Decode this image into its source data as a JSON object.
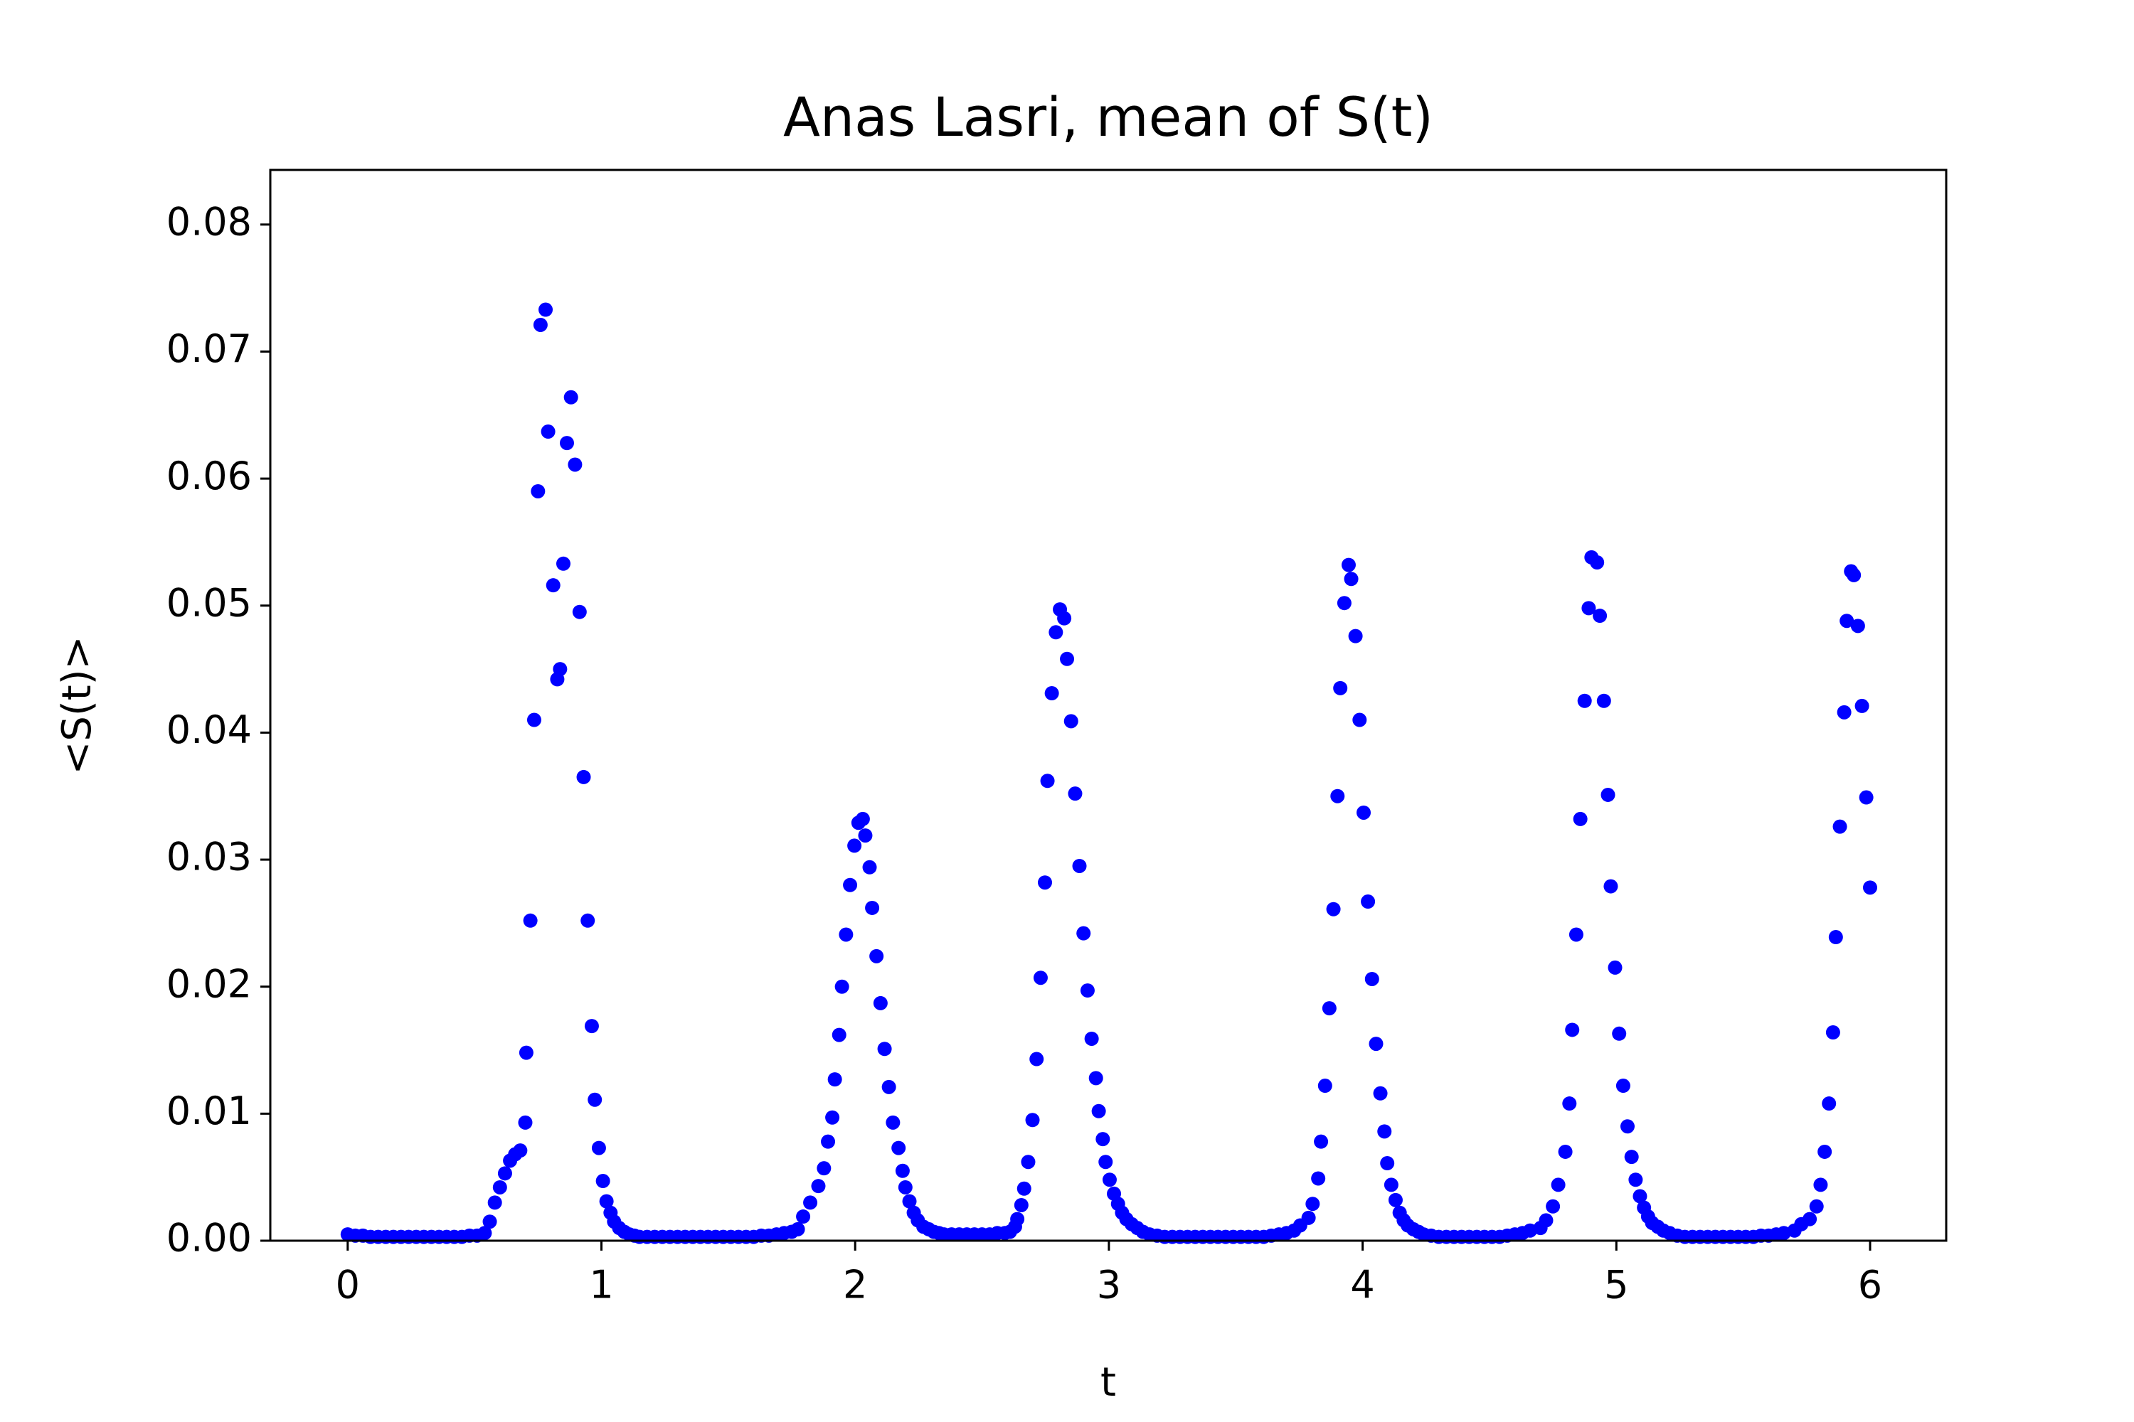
{
  "chart_data": {
    "type": "scatter",
    "title": "Anas Lasri, mean of S(t)",
    "xlabel": "t",
    "ylabel": "<S(t)>",
    "color": "#0000ff",
    "x": [
      0.0,
      0.03,
      0.06,
      0.09,
      0.12,
      0.15,
      0.18,
      0.21,
      0.24,
      0.27,
      0.3,
      0.33,
      0.36,
      0.39,
      0.42,
      0.45,
      0.48,
      0.51,
      0.54,
      0.56,
      0.58,
      0.6,
      0.62,
      0.64,
      0.66,
      0.68,
      0.7,
      0.704,
      0.72,
      0.735,
      0.75,
      0.76,
      0.78,
      0.79,
      0.81,
      0.826,
      0.837,
      0.85,
      0.864,
      0.88,
      0.896,
      0.914,
      0.93,
      0.946,
      0.962,
      0.974,
      0.99,
      1.006,
      1.02,
      1.036,
      1.05,
      1.07,
      1.09,
      1.11,
      1.13,
      1.15,
      1.18,
      1.21,
      1.24,
      1.27,
      1.3,
      1.33,
      1.36,
      1.39,
      1.42,
      1.45,
      1.48,
      1.51,
      1.54,
      1.57,
      1.6,
      1.63,
      1.66,
      1.69,
      1.72,
      1.75,
      1.774,
      1.795,
      1.823,
      1.855,
      1.877,
      1.893,
      1.91,
      1.92,
      1.937,
      1.948,
      1.964,
      1.98,
      1.997,
      2.013,
      2.03,
      2.04,
      2.057,
      2.067,
      2.084,
      2.1,
      2.116,
      2.133,
      2.149,
      2.171,
      2.187,
      2.198,
      2.214,
      2.231,
      2.247,
      2.269,
      2.29,
      2.31,
      2.33,
      2.35,
      2.38,
      2.41,
      2.44,
      2.47,
      2.5,
      2.53,
      2.56,
      2.59,
      2.61,
      2.63,
      2.639,
      2.655,
      2.666,
      2.682,
      2.699,
      2.715,
      2.731,
      2.748,
      2.758,
      2.775,
      2.791,
      2.807,
      2.824,
      2.835,
      2.851,
      2.867,
      2.884,
      2.9,
      2.916,
      2.932,
      2.949,
      2.96,
      2.976,
      2.987,
      3.003,
      3.02,
      3.036,
      3.052,
      3.069,
      3.09,
      3.112,
      3.134,
      3.16,
      3.19,
      3.22,
      3.25,
      3.28,
      3.31,
      3.34,
      3.37,
      3.4,
      3.43,
      3.46,
      3.49,
      3.52,
      3.55,
      3.58,
      3.61,
      3.64,
      3.67,
      3.7,
      3.73,
      3.754,
      3.787,
      3.803,
      3.825,
      3.836,
      3.852,
      3.869,
      3.885,
      3.901,
      3.912,
      3.928,
      3.945,
      3.955,
      3.972,
      3.988,
      4.004,
      4.021,
      4.037,
      4.053,
      4.07,
      4.086,
      4.097,
      4.113,
      4.13,
      4.146,
      4.162,
      4.178,
      4.2,
      4.22,
      4.24,
      4.27,
      4.3,
      4.33,
      4.36,
      4.39,
      4.42,
      4.45,
      4.48,
      4.51,
      4.54,
      4.57,
      4.6,
      4.63,
      4.66,
      4.701,
      4.723,
      4.75,
      4.771,
      4.799,
      4.815,
      4.826,
      4.842,
      4.858,
      4.875,
      4.891,
      4.902,
      4.924,
      4.935,
      4.951,
      4.967,
      4.978,
      4.995,
      5.011,
      5.027,
      5.044,
      5.06,
      5.076,
      5.093,
      5.109,
      5.125,
      5.141,
      5.163,
      5.185,
      5.21,
      5.24,
      5.27,
      5.3,
      5.33,
      5.36,
      5.39,
      5.42,
      5.45,
      5.48,
      5.51,
      5.54,
      5.57,
      5.6,
      5.63,
      5.66,
      5.702,
      5.729,
      5.762,
      5.789,
      5.805,
      5.821,
      5.838,
      5.854,
      5.865,
      5.881,
      5.898,
      5.908,
      5.925,
      5.936,
      5.952,
      5.968,
      5.985,
      6.0
    ],
    "values": [
      0.0005,
      0.0004,
      0.0004,
      0.0003,
      0.0003,
      0.0003,
      0.0003,
      0.0003,
      0.0003,
      0.0003,
      0.0003,
      0.0003,
      0.0003,
      0.0003,
      0.0003,
      0.0003,
      0.0004,
      0.0004,
      0.0006,
      0.0015,
      0.003,
      0.0042,
      0.0053,
      0.0063,
      0.0068,
      0.0071,
      0.0093,
      0.0148,
      0.0252,
      0.041,
      0.059,
      0.0721,
      0.0733,
      0.0637,
      0.0516,
      0.0442,
      0.045,
      0.0533,
      0.0628,
      0.0664,
      0.0611,
      0.0495,
      0.0365,
      0.0252,
      0.0169,
      0.0111,
      0.0073,
      0.0047,
      0.0031,
      0.0022,
      0.0015,
      0.001,
      0.0007,
      0.0005,
      0.0004,
      0.0003,
      0.0003,
      0.0003,
      0.0003,
      0.0003,
      0.0003,
      0.0003,
      0.0003,
      0.0003,
      0.0003,
      0.0003,
      0.0003,
      0.0003,
      0.0003,
      0.0003,
      0.0003,
      0.0004,
      0.0004,
      0.0005,
      0.0006,
      0.0007,
      0.0009,
      0.0019,
      0.003,
      0.0043,
      0.0057,
      0.0078,
      0.0097,
      0.0127,
      0.0162,
      0.02,
      0.0241,
      0.028,
      0.0311,
      0.0329,
      0.0332,
      0.0319,
      0.0294,
      0.0262,
      0.0224,
      0.0187,
      0.0151,
      0.0121,
      0.0093,
      0.0073,
      0.0055,
      0.0042,
      0.0031,
      0.0022,
      0.0016,
      0.0011,
      0.0009,
      0.0007,
      0.0006,
      0.0005,
      0.0005,
      0.0005,
      0.0005,
      0.0005,
      0.0005,
      0.0005,
      0.0006,
      0.0006,
      0.0007,
      0.0011,
      0.0017,
      0.0028,
      0.0041,
      0.0062,
      0.0095,
      0.0143,
      0.0207,
      0.0282,
      0.0362,
      0.0431,
      0.0479,
      0.0497,
      0.049,
      0.0458,
      0.0409,
      0.0352,
      0.0295,
      0.0242,
      0.0197,
      0.0159,
      0.0128,
      0.0102,
      0.008,
      0.0062,
      0.0048,
      0.0037,
      0.0029,
      0.0022,
      0.0017,
      0.0013,
      0.001,
      0.0007,
      0.0005,
      0.0004,
      0.0003,
      0.0003,
      0.0003,
      0.0003,
      0.0003,
      0.0003,
      0.0003,
      0.0003,
      0.0003,
      0.0003,
      0.0003,
      0.0003,
      0.0003,
      0.0003,
      0.0004,
      0.0005,
      0.0006,
      0.0008,
      0.0012,
      0.0018,
      0.0029,
      0.0049,
      0.0078,
      0.0122,
      0.0183,
      0.0261,
      0.035,
      0.0435,
      0.0502,
      0.0532,
      0.0521,
      0.0476,
      0.041,
      0.0337,
      0.0267,
      0.0206,
      0.0155,
      0.0116,
      0.0086,
      0.0061,
      0.0044,
      0.0032,
      0.0022,
      0.0016,
      0.0012,
      0.0009,
      0.0007,
      0.0005,
      0.0004,
      0.0003,
      0.0003,
      0.0003,
      0.0003,
      0.0003,
      0.0003,
      0.0003,
      0.0003,
      0.0003,
      0.0004,
      0.0005,
      0.0006,
      0.0008,
      0.001,
      0.0016,
      0.0027,
      0.0044,
      0.007,
      0.0108,
      0.0166,
      0.0241,
      0.0332,
      0.0425,
      0.0498,
      0.0538,
      0.0534,
      0.0492,
      0.0425,
      0.0351,
      0.0279,
      0.0215,
      0.0163,
      0.0122,
      0.009,
      0.0066,
      0.0048,
      0.0035,
      0.0026,
      0.0019,
      0.0014,
      0.0011,
      0.0008,
      0.0006,
      0.0004,
      0.0003,
      0.0003,
      0.0003,
      0.0003,
      0.0003,
      0.0003,
      0.0003,
      0.0003,
      0.0003,
      0.0003,
      0.0004,
      0.0004,
      0.0005,
      0.0006,
      0.0008,
      0.0013,
      0.0017,
      0.0027,
      0.0044,
      0.007,
      0.0108,
      0.0164,
      0.0239,
      0.0326,
      0.0416,
      0.0488,
      0.0527,
      0.0524,
      0.0484,
      0.0421,
      0.0349,
      0.0278
    ],
    "xlim": [
      -0.305,
      6.3
    ],
    "ylim": [
      0,
      0.0843
    ],
    "xticks": [
      0,
      1,
      2,
      3,
      4,
      5,
      6
    ],
    "yticks": [
      {
        "value": 0,
        "label": "0.00"
      },
      {
        "value": 0.01,
        "label": "0.01"
      },
      {
        "value": 0.02,
        "label": "0.02"
      },
      {
        "value": 0.03,
        "label": "0.03"
      },
      {
        "value": 0.04,
        "label": "0.04"
      },
      {
        "value": 0.05,
        "label": "0.05"
      },
      {
        "value": 0.06,
        "label": "0.06"
      },
      {
        "value": 0.07,
        "label": "0.07"
      },
      {
        "value": 0.08,
        "label": "0.08"
      }
    ],
    "grid": false
  }
}
